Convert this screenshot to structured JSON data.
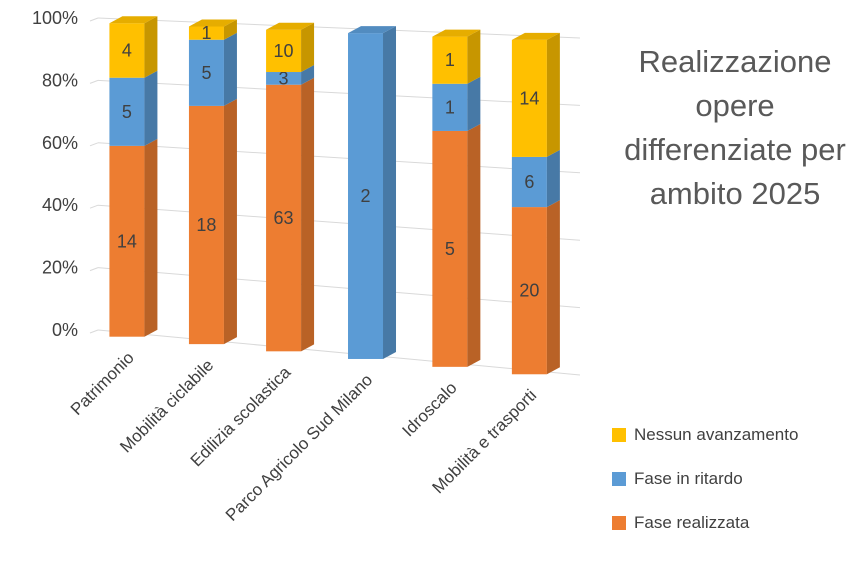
{
  "chart_data": {
    "type": "bar",
    "stacked": "percent",
    "title": "Realizzazione opere differenziate per ambito 2025",
    "categories": [
      "Patrimonio",
      "Mobilità ciclabile",
      "Edilizia scolastica",
      "Parco Agricolo Sud Milano",
      "Idroscalo",
      "Mobilità e trasporti"
    ],
    "series": [
      {
        "name": "Fase realizzata",
        "values": [
          14,
          18,
          63,
          0,
          5,
          20
        ],
        "color": "#ED7D31"
      },
      {
        "name": "Fase in ritardo",
        "values": [
          5,
          5,
          3,
          2,
          1,
          6
        ],
        "color": "#5B9BD5"
      },
      {
        "name": "Nessun avanzamento",
        "values": [
          4,
          1,
          10,
          0,
          1,
          14
        ],
        "color": "#FFC000"
      }
    ],
    "y_ticks": [
      "0%",
      "20%",
      "40%",
      "60%",
      "80%",
      "100%"
    ],
    "ylim": [
      0,
      100
    ],
    "grid": true,
    "legend_position": "bottom-right"
  }
}
